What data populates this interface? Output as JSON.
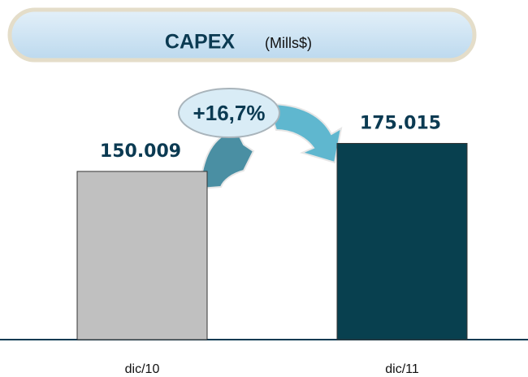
{
  "chart_data": {
    "type": "bar",
    "title": "CAPEX",
    "subtitle": "(Mills$)",
    "categories": [
      "dic/10",
      "dic/11"
    ],
    "values": [
      150009,
      175015
    ],
    "value_labels": [
      "150.009",
      "175.015"
    ],
    "colors": [
      "#c0c0c0",
      "#08404f"
    ],
    "annotation": "+16,7%",
    "ylim": [
      0,
      200000
    ]
  }
}
